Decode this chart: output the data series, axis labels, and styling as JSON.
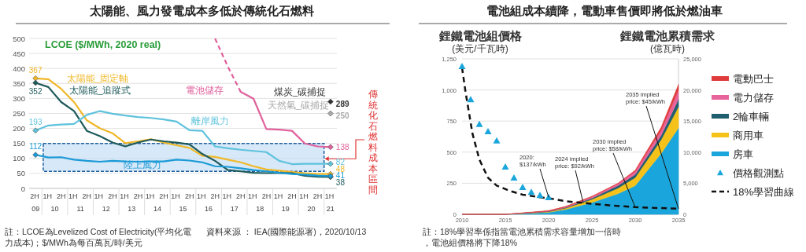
{
  "chart_data": [
    {
      "type": "line",
      "title": "太陽能、風力發電成本多低於傳統化石燃料",
      "subtitle": "LCOE ($/MWh, 2020 real)",
      "categories": [
        "2H 09",
        "1H 10",
        "2H",
        "1H 11",
        "2H",
        "1H 12",
        "2H",
        "1H 13",
        "2H",
        "1H 14",
        "2H",
        "1H 15",
        "2H",
        "1H 16",
        "2H",
        "1H 17",
        "2H",
        "1H 18",
        "2H",
        "1H 19",
        "2H",
        "1H 20",
        "2H",
        "1H 21"
      ],
      "ylim": [
        0,
        500
      ],
      "yticks": [
        0,
        50,
        100,
        150,
        200,
        250,
        300,
        350,
        400,
        450,
        500
      ],
      "grid": "y",
      "series": [
        {
          "name": "太陽能_固定軸",
          "color": "#f0b828",
          "values": [
            367,
            364,
            332,
            288,
            227,
            201,
            184,
            151,
            157,
            164,
            153,
            144,
            135,
            109,
            105,
            96,
            87,
            74,
            63,
            59,
            55,
            51,
            48,
            48
          ],
          "value_labels": [
            "367",
            null,
            null,
            null,
            null,
            null,
            null,
            null,
            null,
            null,
            null,
            null,
            null,
            null,
            null,
            null,
            null,
            null,
            null,
            null,
            null,
            null,
            null,
            "48"
          ]
        },
        {
          "name": "太陽能_追蹤式",
          "color": "#1e5a5a",
          "values": [
            352,
            338,
            288,
            258,
            192,
            175,
            153,
            140,
            153,
            163,
            157,
            153,
            147,
            115,
            92,
            61,
            57,
            52,
            51,
            52,
            51,
            42,
            39,
            38
          ],
          "value_labels": [
            "352",
            null,
            null,
            null,
            null,
            null,
            null,
            null,
            null,
            null,
            null,
            null,
            null,
            null,
            null,
            null,
            null,
            null,
            null,
            null,
            null,
            null,
            null,
            "38"
          ]
        },
        {
          "name": "離岸風力",
          "color": "#5ec2dc",
          "values": [
            193,
            210,
            213,
            215,
            245,
            258,
            249,
            243,
            238,
            235,
            230,
            223,
            194,
            192,
            140,
            134,
            129,
            125,
            121,
            92,
            81,
            82,
            82,
            82
          ],
          "value_labels": [
            "193",
            null,
            null,
            null,
            null,
            null,
            null,
            null,
            null,
            null,
            null,
            null,
            null,
            null,
            null,
            null,
            null,
            null,
            null,
            null,
            null,
            null,
            null,
            "82"
          ]
        },
        {
          "name": "陸上風力",
          "color": "#1a9ad6",
          "values": [
            112,
            103,
            104,
            96,
            92,
            89,
            92,
            90,
            89,
            90,
            90,
            96,
            93,
            87,
            74,
            72,
            67,
            61,
            57,
            52,
            48,
            46,
            43,
            41
          ],
          "value_labels": [
            "112",
            null,
            null,
            null,
            null,
            null,
            null,
            null,
            null,
            null,
            null,
            null,
            null,
            null,
            null,
            null,
            null,
            null,
            null,
            null,
            null,
            null,
            null,
            "41"
          ]
        },
        {
          "color": "#e0609c",
          "line_style": "dashed",
          "values": [
            null,
            null,
            null,
            null,
            null,
            null,
            null,
            null,
            null,
            null,
            null,
            null,
            null,
            null,
            500,
            406,
            322,
            null,
            null,
            null,
            null,
            null,
            null,
            null
          ]
        },
        {
          "name": "電池儲存",
          "color": "#e0609c",
          "values": [
            null,
            null,
            null,
            null,
            null,
            null,
            null,
            null,
            null,
            null,
            null,
            null,
            null,
            null,
            null,
            null,
            322,
            299,
            198,
            196,
            192,
            150,
            140,
            138
          ],
          "value_labels": [
            null,
            null,
            null,
            null,
            null,
            null,
            null,
            null,
            null,
            null,
            null,
            null,
            null,
            null,
            null,
            null,
            null,
            null,
            null,
            null,
            null,
            null,
            null,
            "138"
          ]
        },
        {
          "name": "煤炭_碳捕捉",
          "type": "scatter",
          "marker": "diamond",
          "color": "#333333",
          "values": [
            null,
            null,
            null,
            null,
            null,
            null,
            null,
            null,
            null,
            null,
            null,
            null,
            null,
            null,
            null,
            null,
            null,
            null,
            null,
            null,
            null,
            null,
            null,
            289
          ],
          "value_labels": [
            null,
            null,
            null,
            null,
            null,
            null,
            null,
            null,
            null,
            null,
            null,
            null,
            null,
            null,
            null,
            null,
            null,
            null,
            null,
            null,
            null,
            null,
            null,
            "289"
          ]
        },
        {
          "name": "天然氣_碳捕捉",
          "type": "scatter",
          "marker": "diamond",
          "color": "#aaaaaa",
          "values": [
            null,
            null,
            null,
            null,
            null,
            null,
            null,
            null,
            null,
            null,
            null,
            null,
            null,
            null,
            null,
            null,
            null,
            null,
            null,
            null,
            null,
            null,
            null,
            250
          ],
          "value_labels": [
            null,
            null,
            null,
            null,
            null,
            null,
            null,
            null,
            null,
            null,
            null,
            null,
            null,
            null,
            null,
            null,
            null,
            null,
            null,
            null,
            null,
            null,
            null,
            "250"
          ]
        }
      ],
      "bands": [
        {
          "axis": "y",
          "from": 57,
          "to": 150,
          "label": "傳統化石燃料成本區間",
          "color": "#bcd9f3"
        }
      ],
      "annotations": [
        "註：LCOE為Levelized Cost of Electricity(平均化電力成本)；$/MWh為每百萬瓦/時/美元",
        "資料來源 ： IEA(國際能源署)，2020/10/13"
      ]
    },
    {
      "type": "area",
      "title": "電池組成本續降，電動車售價即將低於燃油車",
      "ylabel": "鋰鐵電池組價格\n(美元/千瓦時)",
      "y2label": "鋰鐵電池累積需求\n(億瓦時)",
      "x": [
        2010,
        2015,
        2020,
        2022,
        2025,
        2028,
        2030,
        2033,
        2035
      ],
      "xlim": [
        2010,
        2035
      ],
      "xticks": [
        2010,
        2015,
        2020,
        2025,
        2030,
        2035
      ],
      "ylim": [
        0,
        1250
      ],
      "yticks": [
        0,
        250,
        500,
        750,
        {
          "value": 1000,
          "label": "1,000"
        },
        {
          "value": 1250,
          "label": "1,250"
        }
      ],
      "y2lim": [
        0,
        25000
      ],
      "y2ticks": [
        0,
        {
          "value": 5000,
          "label": "5,000"
        },
        {
          "value": 10000,
          "label": "10,000"
        },
        {
          "value": 15000,
          "label": "15,000"
        },
        {
          "value": 20000,
          "label": "20,000"
        },
        {
          "value": 25000,
          "label": "25,000"
        }
      ],
      "grid": "y",
      "legend": "right",
      "stacked": true,
      "series": [
        {
          "name": "房車",
          "color": "#1aa6dc",
          "axis": "y2",
          "values": [
            0,
            0,
            300,
            800,
            1900,
            3300,
            4600,
            9800,
            13900
          ]
        },
        {
          "name": "商用車",
          "color": "#f5c21a",
          "axis": "y2",
          "values": [
            0,
            0,
            100,
            200,
            500,
            900,
            1300,
            2200,
            3400
          ]
        },
        {
          "name": "2輪車輛",
          "color": "#1f5f6f",
          "axis": "y2",
          "values": [
            0,
            0,
            100,
            100,
            200,
            400,
            500,
            700,
            1200
          ]
        },
        {
          "name": "電力儲存",
          "color": "#e8649c",
          "axis": "y2",
          "values": [
            0,
            0,
            0,
            100,
            200,
            300,
            500,
            800,
            1500
          ]
        },
        {
          "name": "電動巴士",
          "color": "#e03c3c",
          "axis": "y2",
          "values": [
            0,
            0,
            100,
            100,
            100,
            100,
            200,
            500,
            900
          ]
        },
        {
          "name": "價格觀測點",
          "type": "scatter",
          "marker": "triangle",
          "color": "#1aa6dc",
          "x": [
            2010,
            2011,
            2012,
            2013,
            2014,
            2015,
            2016,
            2017,
            2018,
            2019,
            2020
          ],
          "values": [
            1190,
            924,
            725,
            666,
            592,
            382,
            294,
            218,
            179,
            153,
            137
          ]
        },
        {
          "name": "18%學習曲線",
          "type": "line",
          "line_style": "dashed",
          "color": "#111111",
          "x": [
            2010,
            2010.4,
            2011.2,
            2012,
            2013,
            2014,
            2015.5,
            2017,
            2019,
            2020,
            2022,
            2024,
            2027,
            2030,
            2033,
            2035
          ],
          "values": [
            1180,
            987,
            651,
            441,
            294,
            231,
            189,
            158,
            137,
            130,
            105,
            92,
            72,
            58,
            50,
            45
          ]
        }
      ],
      "annotations": [
        {
          "text": "2020: $137/kWh",
          "x": 2020,
          "y": 137
        },
        {
          "text": "2024 implied price: $92/kWh",
          "x": 2024,
          "y": 92
        },
        {
          "text": "2030 implied price: $58/kWh",
          "x": 2030,
          "y": 58
        },
        {
          "text": "2035 implied price: $45/kWh",
          "x": 2035,
          "y": 45
        },
        "註：18%學習率係指當電池累積需求容量增加一倍時，電池組價格將下降18%"
      ]
    }
  ]
}
